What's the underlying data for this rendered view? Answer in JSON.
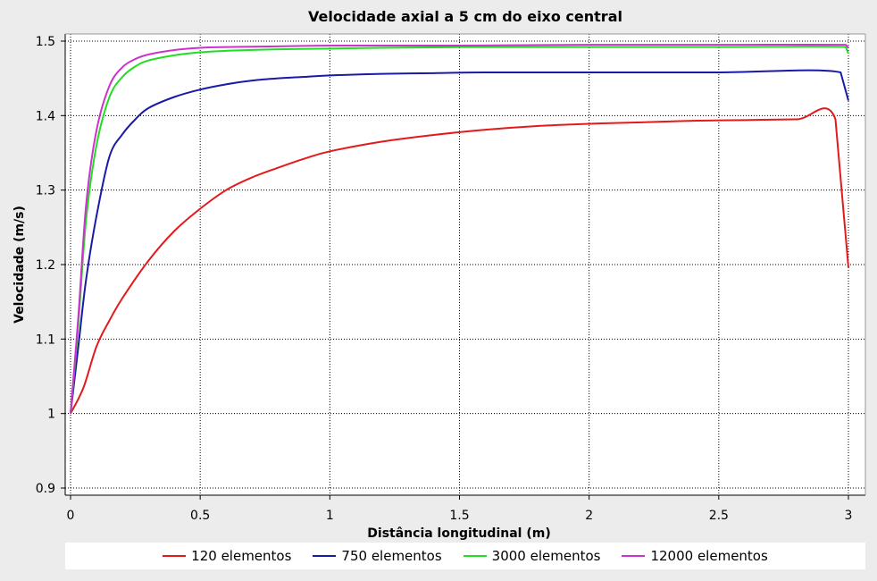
{
  "chart_data": {
    "type": "line",
    "title": "Velocidade axial  a 5 cm do eixo central",
    "xlabel": "Distância longitudinal (m)",
    "ylabel": "Velocidade (m/s)",
    "xlim": [
      0,
      3
    ],
    "ylim": [
      0.9,
      1.5
    ],
    "x_ticks": [
      "0",
      "0.5",
      "1",
      "1.5",
      "2",
      "2.5",
      "3"
    ],
    "y_ticks": [
      "0.9",
      "1",
      "1.1",
      "1.2",
      "1.3",
      "1.4",
      "1.5"
    ],
    "grid": true,
    "legend_position": "bottom",
    "series": [
      {
        "name": "120 elementos",
        "color": "#e31a1c",
        "x": [
          0,
          0.05,
          0.1,
          0.15,
          0.2,
          0.3,
          0.4,
          0.5,
          0.6,
          0.7,
          0.8,
          0.9,
          1.0,
          1.2,
          1.4,
          1.6,
          1.8,
          2.0,
          2.2,
          2.4,
          2.6,
          2.8,
          2.95,
          3.0
        ],
        "y": [
          1.0,
          1.035,
          1.09,
          1.125,
          1.155,
          1.205,
          1.245,
          1.275,
          1.3,
          1.317,
          1.33,
          1.342,
          1.352,
          1.365,
          1.374,
          1.381,
          1.386,
          1.389,
          1.391,
          1.393,
          1.394,
          1.395,
          1.395,
          1.196
        ]
      },
      {
        "name": "750 elementos",
        "color": "#1a1aa8",
        "x": [
          0,
          0.03,
          0.06,
          0.1,
          0.15,
          0.2,
          0.25,
          0.3,
          0.4,
          0.5,
          0.6,
          0.7,
          0.8,
          0.9,
          1.0,
          1.2,
          1.4,
          1.6,
          2.0,
          2.5,
          2.97,
          3.0
        ],
        "y": [
          1.0,
          1.09,
          1.18,
          1.265,
          1.345,
          1.375,
          1.395,
          1.41,
          1.425,
          1.435,
          1.442,
          1.447,
          1.45,
          1.452,
          1.454,
          1.456,
          1.457,
          1.458,
          1.458,
          1.458,
          1.458,
          1.42
        ]
      },
      {
        "name": "3000 elementos",
        "color": "#22dd22",
        "x": [
          0,
          0.03,
          0.06,
          0.1,
          0.15,
          0.2,
          0.25,
          0.3,
          0.4,
          0.5,
          0.6,
          0.8,
          1.0,
          1.2,
          1.5,
          2.0,
          2.5,
          2.99,
          3.0
        ],
        "y": [
          1.0,
          1.12,
          1.26,
          1.36,
          1.425,
          1.452,
          1.466,
          1.474,
          1.481,
          1.485,
          1.487,
          1.489,
          1.49,
          1.491,
          1.492,
          1.492,
          1.492,
          1.492,
          1.483
        ]
      },
      {
        "name": "12000 elementos",
        "color": "#cc33cc",
        "x": [
          0,
          0.03,
          0.06,
          0.1,
          0.15,
          0.2,
          0.25,
          0.3,
          0.4,
          0.5,
          0.6,
          0.8,
          1.0,
          1.2,
          1.5,
          2.0,
          2.5,
          2.99,
          3.0
        ],
        "y": [
          1.0,
          1.13,
          1.28,
          1.38,
          1.44,
          1.465,
          1.476,
          1.482,
          1.488,
          1.491,
          1.492,
          1.493,
          1.494,
          1.494,
          1.494,
          1.495,
          1.495,
          1.495,
          1.491
        ]
      }
    ]
  }
}
